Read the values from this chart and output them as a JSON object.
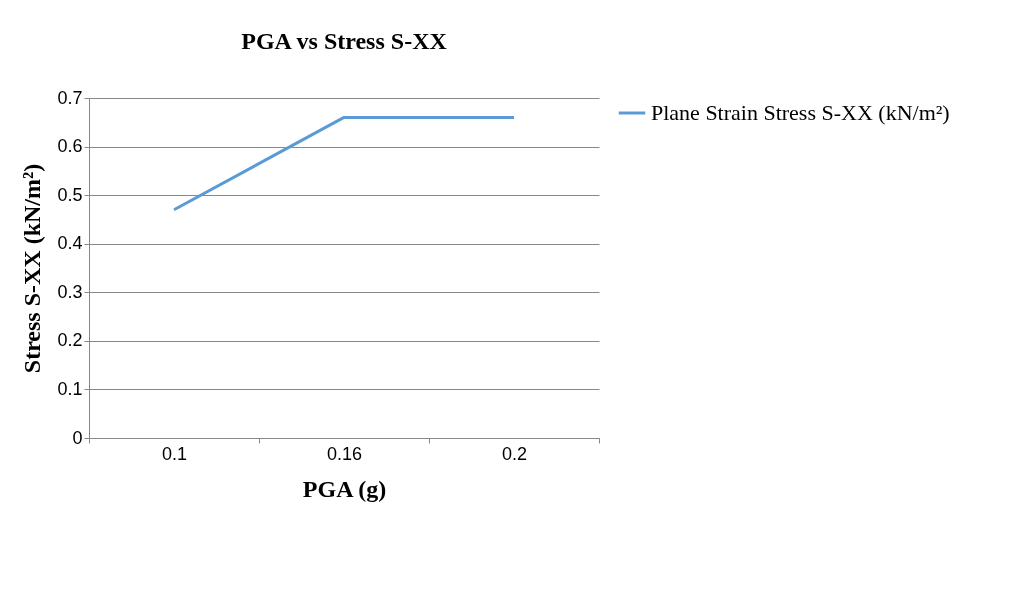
{
  "chart_data": {
    "type": "line",
    "title": "PGA vs Stress S-XX",
    "xlabel": "PGA (g)",
    "ylabel": "Stress S-XX (kN/m²)",
    "categories": [
      "0.1",
      "0.16",
      "0.2"
    ],
    "series": [
      {
        "name": "Plane Strain Stress S-XX (kN/m²)",
        "color": "#5b9bd5",
        "values": [
          0.47,
          0.66,
          0.66
        ]
      }
    ],
    "ylim": [
      0,
      0.7
    ],
    "yticks": [
      0,
      0.1,
      0.2,
      0.3,
      0.4,
      0.5,
      0.6,
      0.7
    ],
    "grid": "y",
    "legend": "right",
    "marker": "none"
  }
}
